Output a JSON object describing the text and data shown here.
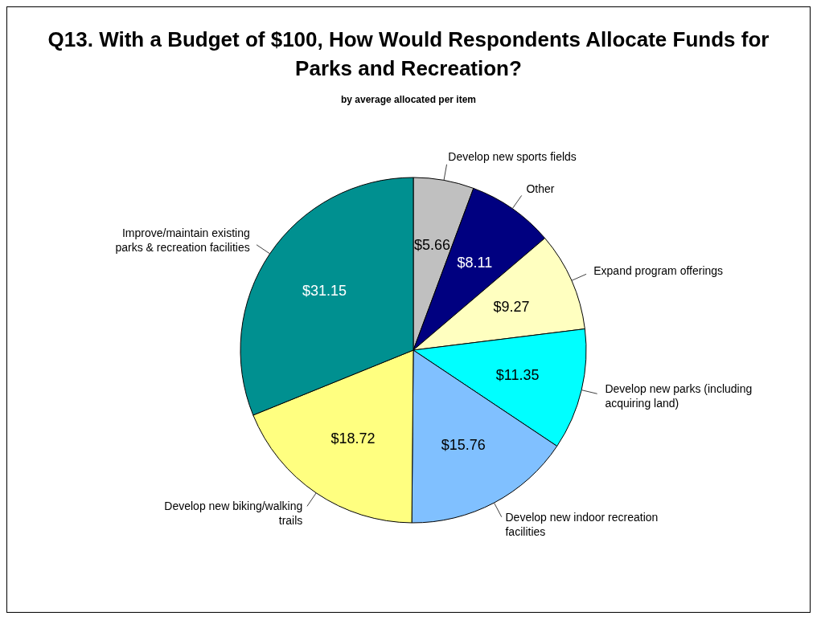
{
  "chart_data": {
    "type": "pie",
    "title": "Q13. With a Budget of $100, How Would Respondents Allocate Funds for Parks and Recreation?",
    "subtitle": "by average allocated per item",
    "categories": [
      "Develop new sports fields",
      "Other",
      "Expand program offerings",
      "Develop new parks (including acquiring land)",
      "Develop new indoor recreation facilities",
      "Develop new biking/walking trails",
      "Improve/maintain existing parks & recreation facilities"
    ],
    "values": [
      5.66,
      8.11,
      9.27,
      11.35,
      15.76,
      18.72,
      31.15
    ],
    "colors": [
      "#c0c0c0",
      "#000080",
      "#ffffc0",
      "#00ffff",
      "#80c0ff",
      "#ffff80",
      "#009090"
    ],
    "value_labels": [
      "$5.66",
      "$8.11",
      "$9.27",
      "$11.35",
      "$15.76",
      "$18.72",
      "$31.15"
    ]
  }
}
